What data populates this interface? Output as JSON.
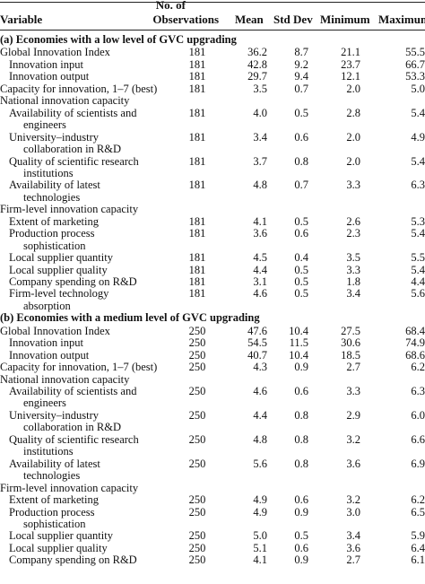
{
  "header": {
    "variable": "Variable",
    "observations_line1": "No. of",
    "observations_line2": "Observations",
    "mean": "Mean",
    "std": "Std Dev",
    "min": "Minimum",
    "max": "Maximum"
  },
  "rows": [
    {
      "kind": "section",
      "label": "(a) Economies with a low level of GVC upgrading"
    },
    {
      "kind": "data",
      "level": 0,
      "label": [
        "Global Innovation Index"
      ],
      "n": "181",
      "mean": "36.2",
      "sd": "8.7",
      "min": "21.1",
      "max": "55.5"
    },
    {
      "kind": "data",
      "level": 1,
      "label": [
        "Innovation input"
      ],
      "n": "181",
      "mean": "42.8",
      "sd": "9.2",
      "min": "23.7",
      "max": "66.7"
    },
    {
      "kind": "data",
      "level": 1,
      "label": [
        "Innovation output"
      ],
      "n": "181",
      "mean": "29.7",
      "sd": "9.4",
      "min": "12.1",
      "max": "53.3"
    },
    {
      "kind": "data",
      "level": 0,
      "label": [
        "Capacity for innovation, 1–7 (best)"
      ],
      "n": "181",
      "mean": "3.5",
      "sd": "0.7",
      "min": "2.0",
      "max": "5.0"
    },
    {
      "kind": "group",
      "label": "National innovation capacity"
    },
    {
      "kind": "data",
      "level": 1,
      "label": [
        "Availability of scientists and",
        "engineers"
      ],
      "n": "181",
      "mean": "4.0",
      "sd": "0.5",
      "min": "2.8",
      "max": "5.4"
    },
    {
      "kind": "data",
      "level": 1,
      "label": [
        "University–industry",
        "collaboration in R&D"
      ],
      "n": "181",
      "mean": "3.4",
      "sd": "0.6",
      "min": "2.0",
      "max": "4.9"
    },
    {
      "kind": "data",
      "level": 1,
      "label": [
        "Quality of scientific research",
        "institutions"
      ],
      "n": "181",
      "mean": "3.7",
      "sd": "0.8",
      "min": "2.0",
      "max": "5.4"
    },
    {
      "kind": "data",
      "level": 1,
      "label": [
        "Availability of latest",
        "technologies"
      ],
      "n": "181",
      "mean": "4.8",
      "sd": "0.7",
      "min": "3.3",
      "max": "6.3"
    },
    {
      "kind": "group",
      "label": "Firm-level innovation capacity"
    },
    {
      "kind": "data",
      "level": 1,
      "label": [
        "Extent of marketing"
      ],
      "n": "181",
      "mean": "4.1",
      "sd": "0.5",
      "min": "2.6",
      "max": "5.3"
    },
    {
      "kind": "data",
      "level": 1,
      "label": [
        "Production process",
        "sophistication"
      ],
      "n": "181",
      "mean": "3.6",
      "sd": "0.6",
      "min": "2.3",
      "max": "5.4"
    },
    {
      "kind": "data",
      "level": 1,
      "label": [
        "Local supplier quantity"
      ],
      "n": "181",
      "mean": "4.5",
      "sd": "0.4",
      "min": "3.5",
      "max": "5.5"
    },
    {
      "kind": "data",
      "level": 1,
      "label": [
        "Local supplier quality"
      ],
      "n": "181",
      "mean": "4.4",
      "sd": "0.5",
      "min": "3.3",
      "max": "5.4"
    },
    {
      "kind": "data",
      "level": 1,
      "label": [
        "Company spending on R&D"
      ],
      "n": "181",
      "mean": "3.1",
      "sd": "0.5",
      "min": "1.8",
      "max": "4.4"
    },
    {
      "kind": "data",
      "level": 1,
      "label": [
        "Firm-level technology",
        "absorption"
      ],
      "n": "181",
      "mean": "4.6",
      "sd": "0.5",
      "min": "3.4",
      "max": "5.6"
    },
    {
      "kind": "section",
      "label": "(b) Economies with a medium level of GVC upgrading"
    },
    {
      "kind": "data",
      "level": 0,
      "label": [
        "Global Innovation Index"
      ],
      "n": "250",
      "mean": "47.6",
      "sd": "10.4",
      "min": "27.5",
      "max": "68.4"
    },
    {
      "kind": "data",
      "level": 1,
      "label": [
        "Innovation input"
      ],
      "n": "250",
      "mean": "54.5",
      "sd": "11.5",
      "min": "30.6",
      "max": "74.9"
    },
    {
      "kind": "data",
      "level": 1,
      "label": [
        "Innovation output"
      ],
      "n": "250",
      "mean": "40.7",
      "sd": "10.4",
      "min": "18.5",
      "max": "68.6"
    },
    {
      "kind": "data",
      "level": 0,
      "label": [
        "Capacity for innovation, 1–7 (best)"
      ],
      "n": "250",
      "mean": "4.3",
      "sd": "0.9",
      "min": "2.7",
      "max": "6.2"
    },
    {
      "kind": "group",
      "label": "National innovation capacity"
    },
    {
      "kind": "data",
      "level": 1,
      "label": [
        "Availability of scientists and",
        "engineers"
      ],
      "n": "250",
      "mean": "4.6",
      "sd": "0.6",
      "min": "3.3",
      "max": "6.3"
    },
    {
      "kind": "data",
      "level": 1,
      "label": [
        "University–industry",
        "collaboration in R&D"
      ],
      "n": "250",
      "mean": "4.4",
      "sd": "0.8",
      "min": "2.9",
      "max": "6.0"
    },
    {
      "kind": "data",
      "level": 1,
      "label": [
        "Quality of scientific research",
        "institutions"
      ],
      "n": "250",
      "mean": "4.8",
      "sd": "0.8",
      "min": "3.2",
      "max": "6.6"
    },
    {
      "kind": "data",
      "level": 1,
      "label": [
        "Availability of latest",
        "technologies"
      ],
      "n": "250",
      "mean": "5.6",
      "sd": "0.8",
      "min": "3.6",
      "max": "6.9"
    },
    {
      "kind": "group",
      "label": "Firm-level innovation capacity"
    },
    {
      "kind": "data",
      "level": 1,
      "label": [
        "Extent of marketing"
      ],
      "n": "250",
      "mean": "4.9",
      "sd": "0.6",
      "min": "3.2",
      "max": "6.2"
    },
    {
      "kind": "data",
      "level": 1,
      "label": [
        "Production process",
        "sophistication"
      ],
      "n": "250",
      "mean": "4.9",
      "sd": "0.9",
      "min": "3.0",
      "max": "6.5"
    },
    {
      "kind": "data",
      "level": 1,
      "label": [
        "Local supplier quantity"
      ],
      "n": "250",
      "mean": "5.0",
      "sd": "0.5",
      "min": "3.4",
      "max": "5.9"
    },
    {
      "kind": "data",
      "level": 1,
      "label": [
        "Local supplier quality"
      ],
      "n": "250",
      "mean": "5.1",
      "sd": "0.6",
      "min": "3.6",
      "max": "6.4"
    },
    {
      "kind": "data",
      "level": 1,
      "label": [
        "Company spending on R&D"
      ],
      "n": "250",
      "mean": "4.1",
      "sd": "0.9",
      "min": "2.7",
      "max": "6.1"
    }
  ]
}
